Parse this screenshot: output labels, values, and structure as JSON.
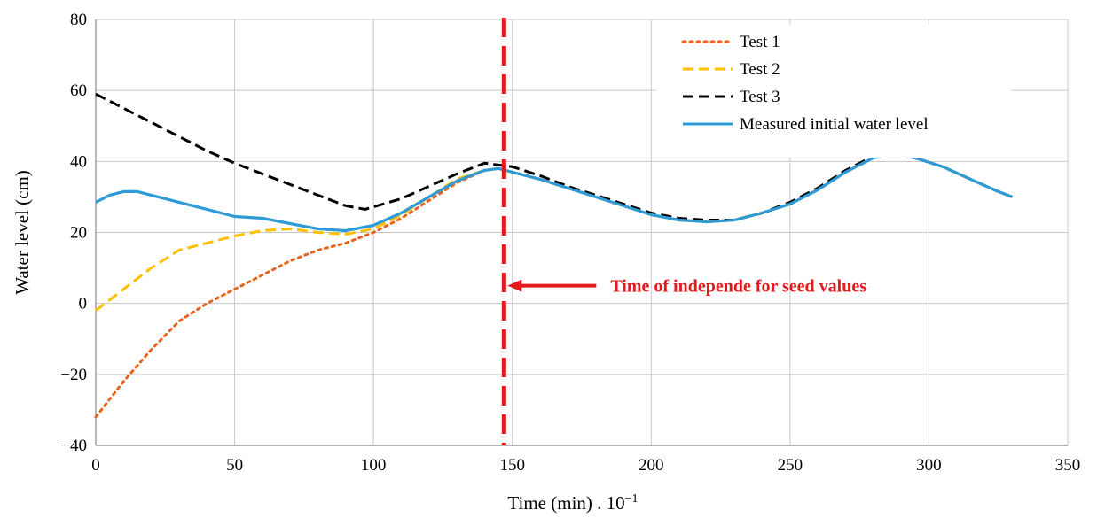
{
  "chart_data": {
    "type": "line",
    "xlabel": "Time (min) . 10",
    "xlabel_exponent": "−1",
    "ylabel": "Water level (cm)",
    "xlim": [
      0,
      350
    ],
    "ylim": [
      -40,
      80
    ],
    "x_ticks": [
      0,
      50,
      100,
      150,
      200,
      250,
      300,
      350
    ],
    "y_ticks": [
      80,
      60,
      40,
      20,
      0,
      -20,
      -40
    ],
    "x_tick_labels": [
      "0",
      "50",
      "100",
      "150",
      "200",
      "250",
      "300",
      "350"
    ],
    "y_tick_labels": [
      "80",
      "60",
      "40",
      "20",
      "0",
      "−20",
      "−40"
    ],
    "grid": true,
    "legend_position": "top-right",
    "series": [
      {
        "name": "Test 1",
        "color": "#E8641C",
        "style": "dotted",
        "points": [
          [
            0,
            -32
          ],
          [
            10,
            -22
          ],
          [
            20,
            -13
          ],
          [
            30,
            -5
          ],
          [
            40,
            0
          ],
          [
            50,
            4
          ],
          [
            60,
            8
          ],
          [
            70,
            12
          ],
          [
            80,
            15
          ],
          [
            90,
            17
          ],
          [
            100,
            20
          ],
          [
            110,
            24
          ],
          [
            120,
            29
          ],
          [
            130,
            34
          ],
          [
            140,
            37.5
          ],
          [
            145,
            38
          ],
          [
            150,
            37
          ],
          [
            160,
            35
          ],
          [
            170,
            32.5
          ],
          [
            180,
            30
          ],
          [
            190,
            27.5
          ],
          [
            200,
            25
          ],
          [
            210,
            23.5
          ],
          [
            220,
            23
          ],
          [
            230,
            23.5
          ],
          [
            240,
            25.5
          ],
          [
            250,
            28
          ],
          [
            260,
            32
          ],
          [
            270,
            37
          ],
          [
            280,
            41
          ],
          [
            287,
            42
          ],
          [
            295,
            41
          ],
          [
            305,
            38.5
          ],
          [
            315,
            35
          ],
          [
            325,
            31.5
          ],
          [
            330,
            30
          ]
        ]
      },
      {
        "name": "Test 2",
        "color": "#FFC000",
        "style": "dashed",
        "points": [
          [
            0,
            -2
          ],
          [
            10,
            4
          ],
          [
            20,
            10
          ],
          [
            30,
            15
          ],
          [
            40,
            17
          ],
          [
            50,
            19
          ],
          [
            60,
            20.5
          ],
          [
            70,
            21
          ],
          [
            80,
            20
          ],
          [
            90,
            19.5
          ],
          [
            100,
            21
          ],
          [
            110,
            25
          ],
          [
            120,
            30
          ],
          [
            130,
            35
          ],
          [
            140,
            37.5
          ],
          [
            145,
            38
          ],
          [
            150,
            37
          ],
          [
            160,
            35
          ],
          [
            170,
            32.5
          ],
          [
            180,
            30
          ],
          [
            190,
            27.5
          ],
          [
            200,
            25
          ],
          [
            210,
            23.5
          ],
          [
            220,
            23
          ],
          [
            230,
            23.5
          ],
          [
            240,
            25.5
          ],
          [
            250,
            28
          ],
          [
            260,
            32
          ],
          [
            270,
            37
          ],
          [
            280,
            41
          ],
          [
            287,
            42
          ],
          [
            295,
            41
          ],
          [
            305,
            38.5
          ],
          [
            315,
            35
          ],
          [
            325,
            31.5
          ],
          [
            330,
            30
          ]
        ]
      },
      {
        "name": "Test 3",
        "color": "#000000",
        "style": "dashed",
        "points": [
          [
            0,
            59
          ],
          [
            10,
            55
          ],
          [
            20,
            51
          ],
          [
            30,
            47
          ],
          [
            40,
            43
          ],
          [
            50,
            39.5
          ],
          [
            60,
            36.5
          ],
          [
            70,
            33.5
          ],
          [
            80,
            30.5
          ],
          [
            90,
            27.5
          ],
          [
            97,
            26.5
          ],
          [
            110,
            29.5
          ],
          [
            120,
            33
          ],
          [
            130,
            36.5
          ],
          [
            140,
            39.5
          ],
          [
            150,
            38.5
          ],
          [
            160,
            36
          ],
          [
            170,
            33
          ],
          [
            180,
            30.5
          ],
          [
            190,
            28
          ],
          [
            200,
            25.5
          ],
          [
            210,
            24
          ],
          [
            220,
            23.5
          ],
          [
            230,
            23.5
          ],
          [
            240,
            25.5
          ],
          [
            250,
            28.5
          ],
          [
            260,
            32.5
          ],
          [
            270,
            37.5
          ],
          [
            280,
            41.5
          ],
          [
            287,
            42
          ],
          [
            295,
            41
          ],
          [
            305,
            38.5
          ],
          [
            315,
            35
          ],
          [
            325,
            31.5
          ],
          [
            330,
            30
          ]
        ]
      },
      {
        "name": "Measured initial water level",
        "color": "#2E9BD6",
        "style": "solid",
        "points": [
          [
            0,
            28.5
          ],
          [
            5,
            30.5
          ],
          [
            10,
            31.5
          ],
          [
            15,
            31.5
          ],
          [
            20,
            30.5
          ],
          [
            30,
            28.5
          ],
          [
            40,
            26.5
          ],
          [
            50,
            24.5
          ],
          [
            60,
            24
          ],
          [
            70,
            22.5
          ],
          [
            80,
            21
          ],
          [
            90,
            20.5
          ],
          [
            100,
            22
          ],
          [
            110,
            25.5
          ],
          [
            120,
            30
          ],
          [
            130,
            34.5
          ],
          [
            140,
            37.5
          ],
          [
            145,
            38
          ],
          [
            150,
            37
          ],
          [
            160,
            35
          ],
          [
            170,
            32.5
          ],
          [
            180,
            30
          ],
          [
            190,
            27.5
          ],
          [
            200,
            25
          ],
          [
            210,
            23.5
          ],
          [
            220,
            23
          ],
          [
            230,
            23.5
          ],
          [
            240,
            25.5
          ],
          [
            250,
            28
          ],
          [
            260,
            32
          ],
          [
            270,
            37
          ],
          [
            280,
            41
          ],
          [
            287,
            42
          ],
          [
            295,
            41
          ],
          [
            305,
            38.5
          ],
          [
            315,
            35
          ],
          [
            325,
            31.5
          ],
          [
            330,
            30
          ]
        ]
      }
    ],
    "vertical_line": {
      "x": 147,
      "color": "#E31A1C",
      "style": "dashed"
    },
    "annotation": {
      "text": "Time of independe for seed values",
      "color": "#E31A1C",
      "arrow_to_x": 147,
      "arrow_y": 5
    }
  }
}
